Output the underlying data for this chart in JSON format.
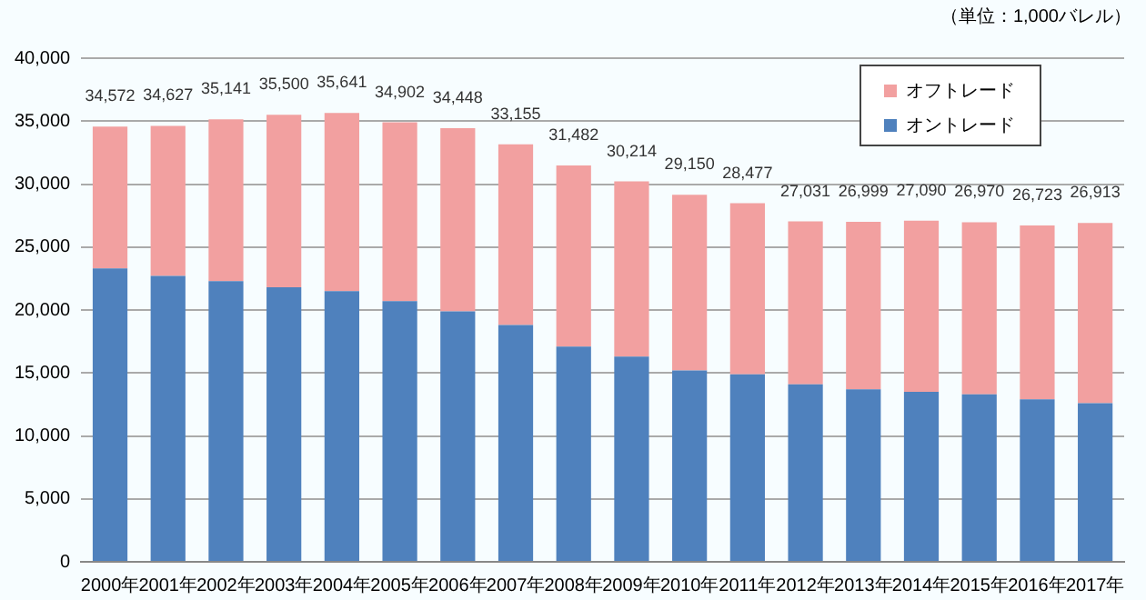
{
  "chart_data": {
    "type": "bar",
    "stacked": true,
    "categories": [
      "2000年",
      "2001年",
      "2002年",
      "2003年",
      "2004年",
      "2005年",
      "2006年",
      "2007年",
      "2008年",
      "2009年",
      "2010年",
      "2011年",
      "2012年",
      "2013年",
      "2014年",
      "2015年",
      "2016年",
      "2017年"
    ],
    "series": [
      {
        "name": "オントレード",
        "color": "#4f81bd",
        "values": [
          23300,
          22700,
          22300,
          21800,
          21500,
          20700,
          19900,
          18800,
          17100,
          16300,
          15200,
          14900,
          14100,
          13700,
          13500,
          13300,
          12900,
          12600
        ]
      },
      {
        "name": "オフトレード",
        "color": "#f2a0a0",
        "values": [
          11272,
          11927,
          12841,
          13700,
          14141,
          14202,
          14548,
          14355,
          14382,
          13914,
          13950,
          13577,
          12931,
          13299,
          13590,
          13670,
          13823,
          14313
        ]
      }
    ],
    "totals": [
      "34,572",
      "34,627",
      "35,141",
      "35,500",
      "35,641",
      "34,902",
      "34,448",
      "33,155",
      "31,482",
      "30,214",
      "29,150",
      "28,477",
      "27,031",
      "26,999",
      "27,090",
      "26,970",
      "26,723",
      "26,913"
    ],
    "ylim": [
      0,
      40000
    ],
    "yticks": [
      0,
      {
        "value": 5000,
        "label": "5,000"
      },
      {
        "value": 10000,
        "label": "10,000"
      },
      {
        "value": 15000,
        "label": "15,000"
      },
      {
        "value": 20000,
        "label": "20,000"
      },
      {
        "value": 25000,
        "label": "25,000"
      },
      {
        "value": 30000,
        "label": "30,000"
      },
      {
        "value": 35000,
        "label": "35,000"
      },
      {
        "value": 40000,
        "label": "40,000"
      }
    ],
    "grid": "y",
    "legend": "top right",
    "annotations": [
      "（単位：1,000バレル）"
    ]
  }
}
